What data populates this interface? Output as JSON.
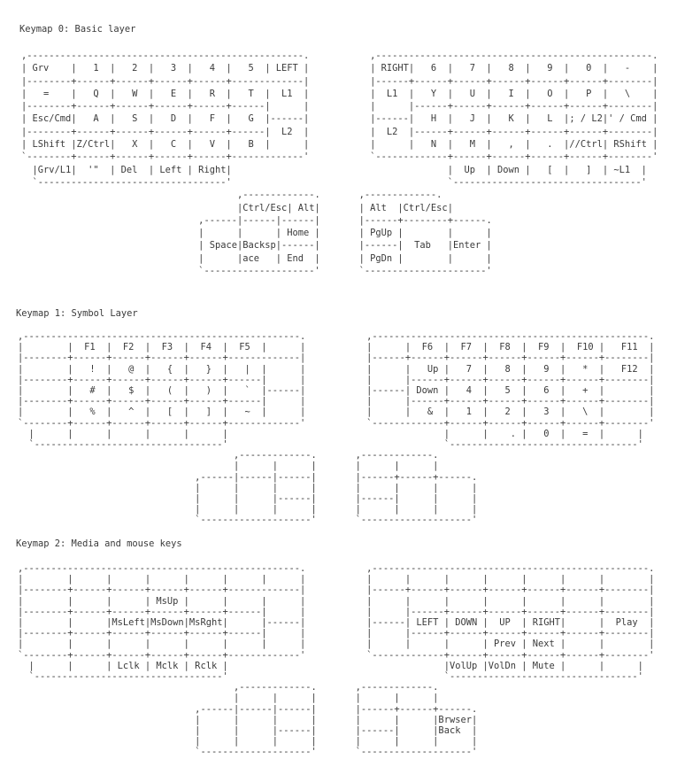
{
  "layers": [
    {
      "title": "Keymap 0: Basic layer",
      "lines": [
        ",--------------------------------------------------.           ,--------------------------------------------------.",
        "| Grv    |   1  |   2  |   3  |   4  |   5  | LEFT |           | RIGHT|   6  |   7  |   8  |   9  |   0  |   -    |",
        "|--------+------+------+------+------+-------------|           |------+------+------+------+------+------+--------|",
        "|   =    |   Q  |   W  |   E  |   R  |   T  |  L1  |           |  L1  |   Y  |   U  |   I  |   O  |   P  |   \\    |",
        "|--------+------+------+------+------+------|      |           |      |------+------+------+------+------+--------|",
        "| Esc/Cmd|   A  |   S  |   D  |   F  |   G  |------|           |------|   H  |   J  |   K  |   L  |; / L2|' / Cmd |",
        "|--------+------+------+------+------+------|  L2  |           |  L2  |------+------+------+------+------+--------|",
        "| LShift |Z/Ctrl|   X  |   C  |   V  |   B  |      |           |      |   N  |   M  |   ,  |   .  |//Ctrl| RShift |",
        "`--------+------+------+------+------+-------------'           `-------------+------+------+------+------+--------'",
        "  |Grv/L1|  '\"  | Del  | Left | Right|                                       |  Up  | Down |   [  |   ]  | ~L1  |",
        "  `----------------------------------'                                       `----------------------------------'",
        "                                       ,-------------.       ,-------------.",
        "                                       |Ctrl/Esc| Alt|       | Alt  |Ctrl/Esc|",
        "                                ,------|------|------|       |------+--------+------.",
        "                                |      |      | Home |       | PgUp |        |      |",
        "                                | Space|Backsp|------|       |------|  Tab   |Enter |",
        "                                |      |ace   | End  |       | PgDn |        |      |",
        "                                `--------------------'       `----------------------'"
      ]
    },
    {
      "title": "Keymap 1: Symbol Layer",
      "lines": [
        ",--------------------------------------------------.           ,--------------------------------------------------.",
        "|        |  F1  |  F2  |  F3  |  F4  |  F5  |      |           |      |  F6  |  F7  |  F8  |  F9  |  F10 |   F11  |",
        "|--------+------+------+------+------+-------------|           |------+------+------+------+------+------+--------|",
        "|        |   !  |   @  |   {  |   }  |   |  |      |           |      |   Up |   7  |   8  |   9  |   *  |   F12  |",
        "|--------+------+------+------+------+------|      |           |      |------+------+------+------+------+--------|",
        "|        |   #  |   $  |   (  |   )  |   `  |------|           |------| Down |   4  |   5  |   6  |   +  |        |",
        "|--------+------+------+------+------+------|      |           |      |------+------+------+------+------+--------|",
        "|        |   %  |   ^  |   [  |   ]  |   ~  |      |           |      |   &  |   1  |   2  |   3  |   \\  |        |",
        "`--------+------+------+------+------+-------------'           `-------------+------+------+------+------+--------'",
        "  |      |      |      |      |      |                                       |      |    . |   0  |   =  |      |",
        "  `----------------------------------'                                       `----------------------------------'",
        "                                       ,-------------.       ,-------------.",
        "                                       |      |      |       |      |      |",
        "                                ,------|------|------|       |------+------+------.",
        "                                |      |      |      |       |      |      |      |",
        "                                |      |      |------|       |------|      |      |",
        "                                |      |      |      |       |      |      |      |",
        "                                `--------------------'       `--------------------'"
      ]
    },
    {
      "title": "Keymap 2: Media and mouse keys",
      "lines": [
        ",--------------------------------------------------.           ,--------------------------------------------------.",
        "|        |      |      |      |      |      |      |           |      |      |      |      |      |      |        |",
        "|--------+------+------+------+------+-------------|           |------+------+------+------+------+------+--------|",
        "|        |      |      | MsUp |      |      |      |           |      |      |      |      |      |      |        |",
        "|--------+------+------+------+------+------|      |           |      |------+------+------+------+------+--------|",
        "|        |      |MsLeft|MsDown|MsRght|      |------|           |------| LEFT | DOWN |  UP  | RIGHT|      |  Play  |",
        "|--------+------+------+------+------+------|      |           |      |------+------+------+------+------+--------|",
        "|        |      |      |      |      |      |      |           |      |      |      | Prev | Next |      |        |",
        "`--------+------+------+------+------+-------------'           `-------------+------+------+------+------+--------'",
        "  |      |      | Lclk | Mclk | Rclk |                                       |VolUp |VolDn | Mute |      |      |",
        "  `----------------------------------'                                       `----------------------------------'",
        "                                       ,-------------.       ,-------------.",
        "                                       |      |      |       |      |      |",
        "                                ,------|------|------|       |------+------+------.",
        "                                |      |      |      |       |      |      |Brwser|",
        "                                |      |      |------|       |------|      |Back  |",
        "                                |      |      |      |       |      |      |      |",
        "                                `--------------------'       `--------------------'"
      ]
    }
  ]
}
